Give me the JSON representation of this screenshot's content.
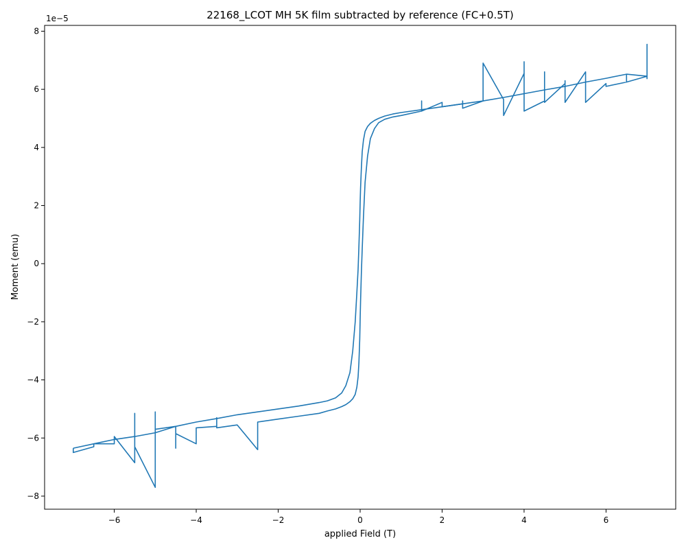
{
  "chart_data": {
    "type": "line",
    "title": "22168_LCOT MH 5K film subtracted by reference (FC+0.5T)",
    "xlabel": "applied Field (T)",
    "ylabel": "Moment (emu)",
    "y_offset_label": "1e−5",
    "y_scale": 1e-05,
    "xlim": [
      -7.7,
      7.7
    ],
    "ylim": [
      -8.45,
      8.2
    ],
    "x_ticks": [
      -6,
      -4,
      -2,
      0,
      2,
      4,
      6
    ],
    "x_tick_labels": [
      "−6",
      "−4",
      "−2",
      "0",
      "2",
      "4",
      "6"
    ],
    "y_ticks": [
      -8,
      -6,
      -4,
      -2,
      0,
      2,
      4,
      6,
      8
    ],
    "y_tick_labels": [
      "−8",
      "−6",
      "−4",
      "−2",
      "0",
      "2",
      "4",
      "6",
      "8"
    ],
    "grid": false,
    "color": "#1f77b4",
    "series": [
      {
        "x": [
          7.0,
          7.0,
          7.0,
          6.5,
          6.5,
          6.5,
          6.0,
          6.0,
          5.5,
          5.5,
          5.0,
          5.0,
          5.0,
          4.5,
          4.5,
          4.5,
          4.0,
          4.0,
          4.0,
          3.5,
          3.5,
          3.0,
          3.0,
          2.5,
          2.5,
          2.5,
          2.0,
          2.0,
          1.5,
          1.5,
          1.5,
          1.0,
          0.8,
          0.6,
          0.45,
          0.35,
          0.25,
          0.18,
          0.12,
          0.08,
          0.05,
          0.03,
          0.01,
          0.0,
          -0.01,
          -0.03,
          -0.05,
          -0.08,
          -0.12,
          -0.18,
          -0.25,
          -0.35,
          -0.45,
          -0.6,
          -0.8,
          -1.0,
          -1.5,
          -2.0,
          -2.5,
          -2.5,
          -2.5,
          -3.0,
          -3.5,
          -3.5,
          -3.5,
          -4.0,
          -4.0,
          -4.0,
          -4.5,
          -4.5,
          -4.5,
          -5.0,
          -5.0,
          -5.0,
          -5.5,
          -5.5,
          -5.5,
          -6.0,
          -6.0,
          -6.5,
          -6.5,
          -7.0,
          -7.0
        ],
        "y": [
          6.35,
          7.55,
          6.45,
          6.25,
          6.5,
          6.25,
          6.1,
          6.2,
          5.55,
          6.6,
          5.55,
          6.3,
          6.2,
          5.55,
          6.6,
          5.6,
          5.25,
          6.95,
          6.55,
          5.1,
          5.65,
          6.9,
          5.6,
          5.35,
          5.6,
          5.5,
          5.4,
          5.55,
          5.25,
          5.6,
          5.25,
          5.1,
          5.05,
          4.97,
          4.85,
          4.65,
          4.3,
          3.7,
          2.8,
          1.6,
          0.5,
          -0.3,
          -1.3,
          -1.9,
          -2.6,
          -3.4,
          -3.9,
          -4.25,
          -4.5,
          -4.65,
          -4.75,
          -4.85,
          -4.92,
          -5.0,
          -5.07,
          -5.15,
          -5.25,
          -5.35,
          -5.45,
          -5.5,
          -6.4,
          -5.55,
          -5.65,
          -5.3,
          -5.6,
          -5.65,
          -5.85,
          -6.2,
          -5.85,
          -6.35,
          -5.6,
          -5.7,
          -5.1,
          -7.7,
          -6.3,
          -5.15,
          -6.85,
          -5.95,
          -6.2,
          -6.2,
          -6.3,
          -6.5,
          -6.35
        ]
      },
      {
        "x": [
          -7.0,
          -6.5,
          -6.0,
          -5.5,
          -5.0,
          -4.5,
          -4.0,
          -3.5,
          -3.0,
          -2.5,
          -2.0,
          -1.5,
          -1.0,
          -0.8,
          -0.6,
          -0.45,
          -0.35,
          -0.25,
          -0.18,
          -0.12,
          -0.08,
          -0.05,
          -0.03,
          -0.01,
          0.0,
          0.01,
          0.03,
          0.05,
          0.08,
          0.12,
          0.18,
          0.25,
          0.35,
          0.45,
          0.6,
          0.8,
          1.0,
          1.5,
          2.0,
          2.5,
          3.0,
          3.5,
          4.0,
          4.5,
          5.0,
          5.5,
          6.0,
          6.5,
          7.0
        ],
        "y": [
          -6.35,
          -6.2,
          -6.05,
          -5.95,
          -5.82,
          -5.6,
          -5.45,
          -5.33,
          -5.2,
          -5.1,
          -5.0,
          -4.9,
          -4.78,
          -4.72,
          -4.62,
          -4.45,
          -4.2,
          -3.75,
          -3.0,
          -2.0,
          -1.0,
          -0.2,
          0.6,
          1.5,
          2.1,
          2.6,
          3.3,
          3.85,
          4.25,
          4.55,
          4.72,
          4.83,
          4.93,
          5.0,
          5.08,
          5.15,
          5.2,
          5.3,
          5.4,
          5.5,
          5.6,
          5.72,
          5.85,
          5.98,
          6.1,
          6.25,
          6.38,
          6.52,
          6.45
        ]
      }
    ]
  }
}
